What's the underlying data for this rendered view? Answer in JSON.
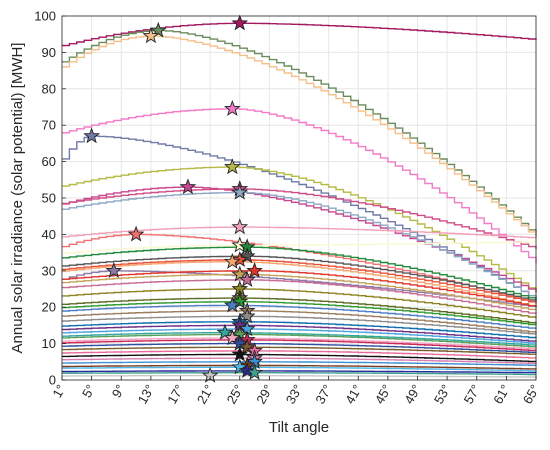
{
  "chart_data": {
    "type": "line",
    "title": "",
    "xlabel": "Tilt angle",
    "ylabel": "Annual solar irradiance (solar potential) [MWH]",
    "xlim": [
      1,
      65
    ],
    "ylim": [
      0,
      100
    ],
    "grid": true,
    "legend": "none",
    "x_ticks": [
      "1°",
      "5°",
      "9°",
      "13°",
      "17°",
      "21°",
      "25°",
      "29°",
      "33°",
      "37°",
      "41°",
      "45°",
      "49°",
      "53°",
      "57°",
      "61°",
      "65°"
    ],
    "y_ticks": [
      0,
      10,
      20,
      30,
      40,
      50,
      60,
      70,
      80,
      90,
      100
    ],
    "marker": "star (optimum tilt per series)",
    "series": [
      {
        "color": "#a2195f",
        "peak": 98,
        "opt": 25,
        "end": 93.5
      },
      {
        "color": "#6b8b5c",
        "peak": 96,
        "opt": 14,
        "end": 39.5
      },
      {
        "color": "#f5bf8a",
        "peak": 94.5,
        "opt": 13,
        "end": 39
      },
      {
        "color": "#f27ac7",
        "peak": 74.5,
        "opt": 24,
        "end": 32
      },
      {
        "color": "#6f7ba6",
        "peak": 67,
        "opt": 5,
        "end": 22
      },
      {
        "color": "#b5ba45",
        "peak": 58.5,
        "opt": 24,
        "end": 24
      },
      {
        "color": "#c8468f",
        "peak": 53,
        "opt": 18,
        "end": 24
      },
      {
        "color": "#d14c87",
        "peak": 52.5,
        "opt": 25,
        "end": 36
      },
      {
        "color": "#8ca7c4",
        "peak": 51.5,
        "opt": 25,
        "end": 22
      },
      {
        "color": "#f2a0b7",
        "peak": 42,
        "opt": 25,
        "end": 39
      },
      {
        "color": "#f07070",
        "peak": 40,
        "opt": 11,
        "end": 21
      },
      {
        "color": "#fafad0",
        "peak": 37,
        "opt": 25,
        "end": 38
      },
      {
        "color": "#1f8a3a",
        "peak": 36.5,
        "opt": 26,
        "end": 22
      },
      {
        "color": "#555555",
        "peak": 34,
        "opt": 26,
        "end": 21.5
      },
      {
        "color": "#e8513a",
        "peak": 33,
        "opt": 25,
        "end": 21
      },
      {
        "color": "#8e7aa8",
        "peak": 30,
        "opt": 8,
        "end": 20
      },
      {
        "color": "#f5a56e",
        "peak": 32.5,
        "opt": 24,
        "end": 20
      },
      {
        "color": "#e2342a",
        "peak": 30,
        "opt": 27,
        "end": 20
      },
      {
        "color": "#c5a35a",
        "peak": 29,
        "opt": 25,
        "end": 19
      },
      {
        "color": "#c76a94",
        "peak": 27.5,
        "opt": 26,
        "end": 18
      },
      {
        "color": "#8e8422",
        "peak": 25,
        "opt": 25,
        "end": 17
      },
      {
        "color": "#5f6b22",
        "peak": 22.5,
        "opt": 25,
        "end": 15.5
      },
      {
        "color": "#2e9a2e",
        "peak": 21.5,
        "opt": 25,
        "end": 15
      },
      {
        "color": "#4c7cc5",
        "peak": 20.5,
        "opt": 24,
        "end": 14
      },
      {
        "color": "#9b7c5e",
        "peak": 19,
        "opt": 26,
        "end": 13
      },
      {
        "color": "#8c8c8c",
        "peak": 17.5,
        "opt": 26,
        "end": 12.5
      },
      {
        "color": "#0e6fb0",
        "peak": 16,
        "opt": 25,
        "end": 11.5
      },
      {
        "color": "#6e2e82",
        "peak": 15,
        "opt": 25,
        "end": 10.5
      },
      {
        "color": "#4aa3df",
        "peak": 14,
        "opt": 26,
        "end": 10
      },
      {
        "color": "#35a7a0",
        "peak": 13,
        "opt": 23,
        "end": 9.5
      },
      {
        "color": "#5aa05a",
        "peak": 12.5,
        "opt": 25,
        "end": 9
      },
      {
        "color": "#f5a6c2",
        "peak": 11.5,
        "opt": 24,
        "end": 8.5
      },
      {
        "color": "#c82a5a",
        "peak": 11,
        "opt": 26,
        "end": 8
      },
      {
        "color": "#2d4f9e",
        "peak": 10,
        "opt": 25,
        "end": 7.5
      },
      {
        "color": "#7a5c2e",
        "peak": 9,
        "opt": 26,
        "end": 7
      },
      {
        "color": "#e86a9b",
        "peak": 8,
        "opt": 27,
        "end": 6
      },
      {
        "color": "#111111",
        "peak": 7,
        "opt": 25,
        "end": 5
      },
      {
        "color": "#d67fb3",
        "peak": 6,
        "opt": 27,
        "end": 4.5
      },
      {
        "color": "#3c8fd0",
        "peak": 5,
        "opt": 27,
        "end": 4
      },
      {
        "color": "#7e3f1e",
        "peak": 4,
        "opt": 26,
        "end": 3
      },
      {
        "color": "#51b7e6",
        "peak": 3.5,
        "opt": 25,
        "end": 2.5
      },
      {
        "color": "#2a2a9a",
        "peak": 2.5,
        "opt": 26,
        "end": 2
      },
      {
        "color": "#3f9f8f",
        "peak": 2,
        "opt": 27,
        "end": 1.5
      },
      {
        "color": "#c8c8c8",
        "peak": 1.2,
        "opt": 21,
        "end": 0.8
      }
    ]
  }
}
